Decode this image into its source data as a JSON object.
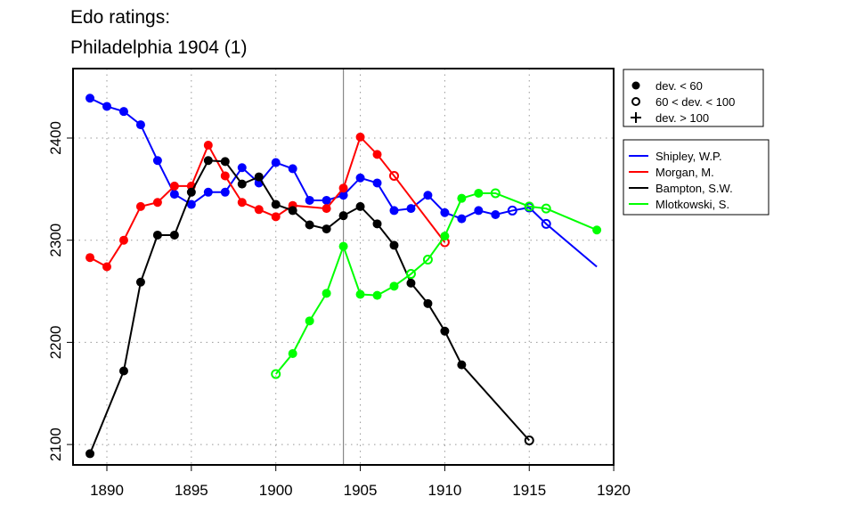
{
  "chart_data": {
    "type": "line",
    "title": [
      "Edo ratings:",
      "Philadelphia 1904 (1)"
    ],
    "xlabel": "",
    "ylabel": "",
    "xlim": [
      1888,
      1920.5
    ],
    "ylim": [
      2080,
      2468
    ],
    "xticks": [
      1890,
      1895,
      1900,
      1905,
      1910,
      1915,
      1920
    ],
    "yticks": [
      2100,
      2200,
      2300,
      2400
    ],
    "grid": "dotted",
    "vline": 1904,
    "marker_legend": [
      {
        "symbol": "filled",
        "label": "dev. < 60"
      },
      {
        "symbol": "open",
        "label": "60 < dev. < 100"
      },
      {
        "symbol": "plus",
        "label": "dev. > 100"
      }
    ],
    "legend_position": "right",
    "series": [
      {
        "name": "Shipley, W.P.",
        "color": "#0000ff",
        "points": [
          [
            1889,
            2439,
            "f"
          ],
          [
            1890,
            2431,
            "f"
          ],
          [
            1891,
            2426,
            "f"
          ],
          [
            1892,
            2413,
            "f"
          ],
          [
            1893,
            2378,
            "f"
          ],
          [
            1894,
            2345,
            "f"
          ],
          [
            1895,
            2335,
            "f"
          ],
          [
            1896,
            2347,
            "f"
          ],
          [
            1897,
            2347,
            "f"
          ],
          [
            1898,
            2371,
            "f"
          ],
          [
            1899,
            2356,
            "f"
          ],
          [
            1900,
            2376,
            "f"
          ],
          [
            1901,
            2370,
            "f"
          ],
          [
            1902,
            2339,
            "f"
          ],
          [
            1903,
            2339,
            "f"
          ],
          [
            1904,
            2344,
            "f"
          ],
          [
            1905,
            2361,
            "f"
          ],
          [
            1906,
            2356,
            "f"
          ],
          [
            1907,
            2329,
            "f"
          ],
          [
            1908,
            2331,
            "f"
          ],
          [
            1909,
            2344,
            "f"
          ],
          [
            1910,
            2327,
            "f"
          ],
          [
            1911,
            2321,
            "f"
          ],
          [
            1912,
            2329,
            "f"
          ],
          [
            1913,
            2325,
            "f"
          ],
          [
            1914,
            2329,
            "o"
          ],
          [
            1915,
            2332,
            "o"
          ],
          [
            1916,
            2316,
            "o"
          ],
          [
            1919,
            2274,
            "n"
          ]
        ]
      },
      {
        "name": "Morgan, M.",
        "color": "#ff0000",
        "points": [
          [
            1889,
            2283,
            "f"
          ],
          [
            1890,
            2274,
            "f"
          ],
          [
            1891,
            2300,
            "f"
          ],
          [
            1892,
            2333,
            "f"
          ],
          [
            1893,
            2337,
            "f"
          ],
          [
            1894,
            2353,
            "f"
          ],
          [
            1895,
            2353,
            "f"
          ],
          [
            1896,
            2393,
            "f"
          ],
          [
            1897,
            2363,
            "f"
          ],
          [
            1898,
            2337,
            "f"
          ],
          [
            1899,
            2330,
            "f"
          ],
          [
            1900,
            2323,
            "f"
          ],
          [
            1901,
            2334,
            "f"
          ],
          [
            1903,
            2331,
            "f"
          ],
          [
            1904,
            2351,
            "f"
          ],
          [
            1905,
            2401,
            "f"
          ],
          [
            1906,
            2384,
            "f"
          ],
          [
            1907,
            2363,
            "o"
          ],
          [
            1910,
            2298,
            "o"
          ]
        ]
      },
      {
        "name": "Bampton, S.W.",
        "color": "#000000",
        "points": [
          [
            1889,
            2091,
            "f"
          ],
          [
            1891,
            2172,
            "f"
          ],
          [
            1892,
            2259,
            "f"
          ],
          [
            1893,
            2305,
            "f"
          ],
          [
            1894,
            2305,
            "f"
          ],
          [
            1895,
            2347,
            "f"
          ],
          [
            1896,
            2378,
            "f"
          ],
          [
            1897,
            2377,
            "f"
          ],
          [
            1898,
            2355,
            "f"
          ],
          [
            1899,
            2362,
            "f"
          ],
          [
            1900,
            2335,
            "f"
          ],
          [
            1901,
            2329,
            "f"
          ],
          [
            1902,
            2315,
            "f"
          ],
          [
            1903,
            2311,
            "f"
          ],
          [
            1904,
            2324,
            "f"
          ],
          [
            1905,
            2333,
            "f"
          ],
          [
            1906,
            2316,
            "f"
          ],
          [
            1907,
            2295,
            "f"
          ],
          [
            1908,
            2258,
            "f"
          ],
          [
            1909,
            2238,
            "f"
          ],
          [
            1910,
            2211,
            "f"
          ],
          [
            1911,
            2178,
            "f"
          ],
          [
            1915,
            2104,
            "o"
          ]
        ]
      },
      {
        "name": "Mlotkowski, S.",
        "color": "#00ff00",
        "points": [
          [
            1900,
            2169,
            "o"
          ],
          [
            1901,
            2189,
            "f"
          ],
          [
            1902,
            2221,
            "f"
          ],
          [
            1903,
            2248,
            "f"
          ],
          [
            1904,
            2294,
            "f"
          ],
          [
            1905,
            2247,
            "f"
          ],
          [
            1906,
            2246,
            "f"
          ],
          [
            1907,
            2255,
            "f"
          ],
          [
            1908,
            2267,
            "o"
          ],
          [
            1909,
            2281,
            "o"
          ],
          [
            1910,
            2304,
            "f"
          ],
          [
            1911,
            2341,
            "f"
          ],
          [
            1912,
            2346,
            "f"
          ],
          [
            1913,
            2346,
            "o"
          ],
          [
            1915,
            2333,
            "o"
          ],
          [
            1916,
            2331,
            "o"
          ],
          [
            1919,
            2310,
            "f"
          ]
        ]
      }
    ]
  }
}
